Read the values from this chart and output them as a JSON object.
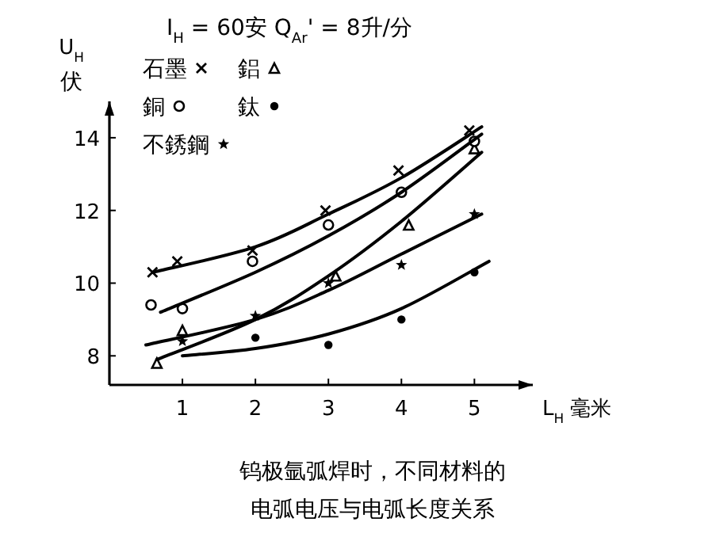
{
  "chart_data": {
    "type": "scatter",
    "title": "I$_{H}$ = 60安  Q$_{Ar}$' = 8升/分",
    "ylabel": "U$_{H}$ 伏",
    "xlabel": "L$_{H}$ 毫米",
    "annotations": [
      "钨极氩弧焊时，不同材料的",
      "电弧电压与电弧长度关系"
    ],
    "xlim": [
      0,
      5.8
    ],
    "ylim": [
      7.2,
      15
    ],
    "xticks": [
      1,
      2,
      3,
      4,
      5
    ],
    "yticks": [
      8,
      10,
      12,
      14
    ],
    "legend": "top left",
    "grid": false,
    "series": [
      {
        "name": "石墨",
        "color": "#000000",
        "marker": "cross",
        "x": [
          0.59,
          0.93,
          1.96,
          2.96,
          3.96,
          4.93
        ],
        "values": [
          10.3,
          10.6,
          10.9,
          12.0,
          13.1,
          14.2
        ]
      },
      {
        "name": "鋁",
        "color": "#000000",
        "marker": "triangle",
        "x": [
          0.65,
          1.0,
          3.1,
          4.1,
          5.0
        ],
        "values": [
          7.8,
          8.7,
          10.2,
          11.6,
          13.7
        ]
      },
      {
        "name": "銅",
        "color": "#000000",
        "marker": "circle",
        "x": [
          0.57,
          1.0,
          1.96,
          3.0,
          4.0,
          5.0
        ],
        "values": [
          9.4,
          9.3,
          10.6,
          11.6,
          12.5,
          13.9
        ]
      },
      {
        "name": "鈦",
        "color": "#000000",
        "marker": "dot",
        "x": [
          2.0,
          3.0,
          4.0,
          5.0
        ],
        "values": [
          8.5,
          8.3,
          9.0,
          10.3
        ]
      },
      {
        "name": "不銹鋼",
        "color": "#000000",
        "marker": "star",
        "x": [
          1.0,
          2.0,
          3.0,
          4.0,
          5.0
        ],
        "values": [
          8.4,
          9.1,
          10.0,
          10.5,
          11.9
        ]
      },
      {
        "type": "line",
        "color": "#000000",
        "marker": "none",
        "x": [
          0.6,
          2,
          3,
          4,
          5.1
        ],
        "values": [
          10.3,
          11.0,
          11.9,
          12.9,
          14.3
        ]
      },
      {
        "type": "line",
        "color": "#000000",
        "marker": "none",
        "x": [
          0.7,
          2,
          3,
          4,
          5.1
        ],
        "values": [
          9.2,
          10.3,
          11.3,
          12.5,
          14.1
        ]
      },
      {
        "type": "line",
        "color": "#000000",
        "marker": "none",
        "x": [
          0.65,
          2,
          3,
          4,
          5.1
        ],
        "values": [
          7.9,
          9.0,
          10.2,
          11.7,
          13.6
        ]
      },
      {
        "type": "line",
        "color": "#000000",
        "marker": "none",
        "x": [
          0.5,
          2,
          3,
          4,
          5.1
        ],
        "values": [
          8.3,
          9.0,
          9.8,
          10.8,
          11.9
        ]
      },
      {
        "type": "line",
        "color": "#000000",
        "marker": "none",
        "x": [
          1.0,
          2,
          3,
          4,
          5.2
        ],
        "values": [
          8.0,
          8.2,
          8.6,
          9.3,
          10.6
        ]
      }
    ]
  }
}
